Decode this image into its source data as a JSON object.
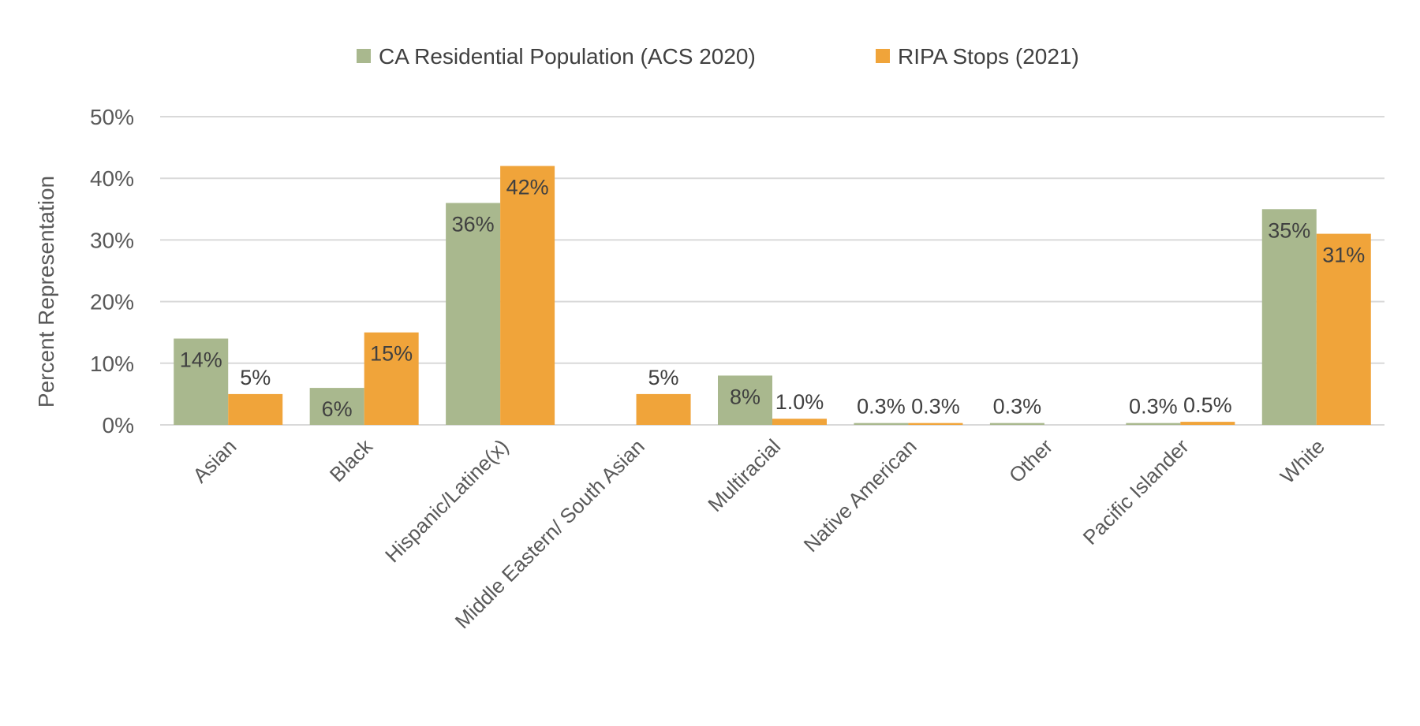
{
  "chart_data": {
    "type": "bar",
    "title": "",
    "xlabel": "",
    "ylabel": "Percent Representation",
    "ylim": [
      0,
      50
    ],
    "yticks": [
      {
        "value": 0,
        "label": "0%"
      },
      {
        "value": 10,
        "label": "10%"
      },
      {
        "value": 20,
        "label": "20%"
      },
      {
        "value": 30,
        "label": "30%"
      },
      {
        "value": 40,
        "label": "40%"
      },
      {
        "value": 50,
        "label": "50%"
      }
    ],
    "grid": true,
    "legend_position": "top-center",
    "categories": [
      "Asian",
      "Black",
      "Hispanic/Latine(x)",
      "Middle Eastern/ South Asian",
      "Multiracial",
      "Native American",
      "Other",
      "Pacific Islander",
      "White"
    ],
    "series": [
      {
        "name": "CA Residential Population (ACS 2020)",
        "color": "#a9b88e",
        "values": [
          14,
          6,
          36,
          0,
          8,
          0.3,
          0.3,
          0.3,
          35
        ],
        "labels": [
          "14%",
          "6%",
          "36%",
          "",
          "8%",
          "0.3%",
          "0.3%",
          "0.3%",
          "35%"
        ]
      },
      {
        "name": "RIPA Stops (2021)",
        "color": "#f0a43a",
        "values": [
          5,
          15,
          42,
          5,
          1.0,
          0.3,
          0,
          0.5,
          31
        ],
        "labels": [
          "5%",
          "15%",
          "42%",
          "5%",
          "1.0%",
          "0.3%",
          "",
          "0.5%",
          "31%"
        ]
      }
    ]
  }
}
